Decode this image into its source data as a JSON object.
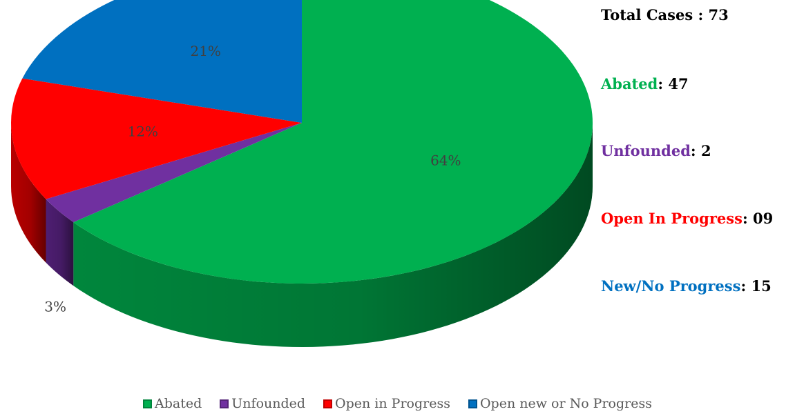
{
  "chart_data": {
    "type": "pie",
    "style": "3d",
    "categories": [
      "Abated",
      "Unfounded",
      "Open in Progress",
      "Open new or No Progress"
    ],
    "values": [
      47,
      2,
      9,
      15
    ],
    "percent_labels": [
      "64%",
      "3%",
      "12%",
      "21%"
    ],
    "colors": [
      "#00B050",
      "#7030A0",
      "#FF0000",
      "#0070C0"
    ],
    "side_colors": [
      "#00863C",
      "#4E1E72",
      "#B80000",
      "#004E8A"
    ],
    "legend_position": "bottom",
    "legend": [
      "Abated",
      "Unfounded",
      "Open in Progress",
      "Open new or No Progress"
    ]
  },
  "summary": {
    "total": "Total Cases : 73",
    "lines": [
      {
        "label": "Abated",
        "value": ": 47",
        "color": "#00B050"
      },
      {
        "label": "Unfounded",
        "value": ": 2",
        "color": "#7030A0"
      },
      {
        "label": "Open In Progress",
        "value": ": 09",
        "color": "#FF0000"
      },
      {
        "label": "New/No Progress",
        "value": ": 15",
        "color": "#0070C0"
      }
    ]
  }
}
